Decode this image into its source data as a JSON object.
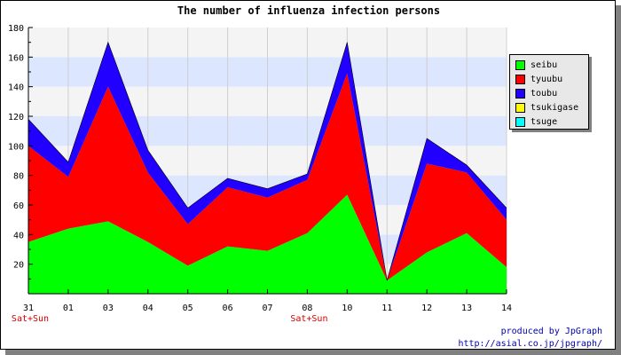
{
  "chart_data": {
    "type": "area",
    "stacked": true,
    "title": "The number of influenza infection persons",
    "categories": [
      "31",
      "01",
      "03",
      "04",
      "05",
      "06",
      "07",
      "08",
      "10",
      "11",
      "12",
      "13",
      "14"
    ],
    "sub_labels": [
      "Sat+Sun",
      "",
      "",
      "",
      "",
      "",
      "",
      "Sat+Sun",
      "",
      "",
      "",
      "",
      ""
    ],
    "ylim": [
      0,
      180
    ],
    "yticks": [
      20,
      40,
      60,
      80,
      100,
      120,
      140,
      160,
      180
    ],
    "grid": true,
    "legend_position": "right",
    "series": [
      {
        "name": "seibu",
        "color": "#00ff00",
        "values": [
          35,
          44,
          49,
          35,
          19,
          32,
          29,
          41,
          67,
          9,
          28,
          41,
          18
        ]
      },
      {
        "name": "tyuubu",
        "color": "#ff0000",
        "values": [
          65,
          35,
          91,
          47,
          28,
          40,
          36,
          36,
          82,
          0,
          60,
          41,
          32
        ]
      },
      {
        "name": "toubu",
        "color": "#2200ff",
        "values": [
          18,
          10,
          30,
          15,
          11,
          6,
          6,
          4,
          21,
          0,
          17,
          5,
          8
        ]
      },
      {
        "name": "tsukigase",
        "color": "#ffff00",
        "values": [
          0,
          0,
          0,
          0,
          0,
          0,
          0,
          0,
          0,
          0,
          0,
          0,
          0
        ]
      },
      {
        "name": "tsuge",
        "color": "#00ffff",
        "values": [
          0,
          0,
          0,
          0,
          0,
          0,
          0,
          0,
          0,
          0,
          0,
          0,
          0
        ]
      }
    ]
  },
  "footer": {
    "line1": "produced by JpGraph",
    "line2": "http://asial.co.jp/jpgraph/"
  }
}
